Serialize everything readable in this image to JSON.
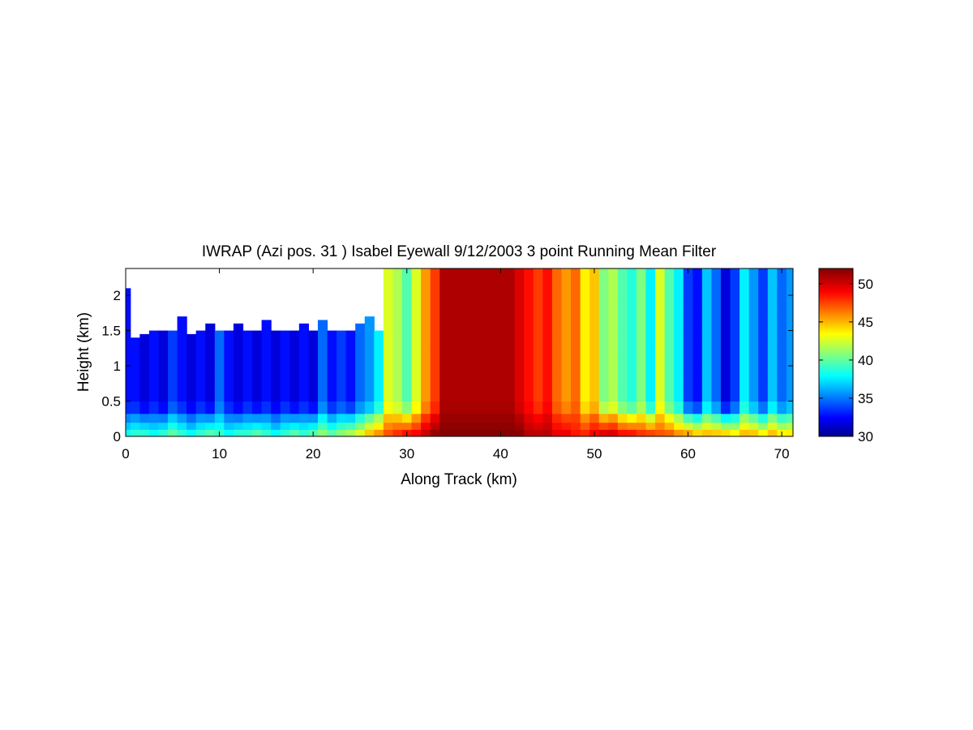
{
  "chart_data": {
    "type": "heatmap",
    "title": "IWRAP (Azi pos. 31 ) Isabel Eyewall 9/12/2003 3 point Running Mean Filter",
    "xlabel": "Along Track (km)",
    "ylabel": "Height (km)",
    "xlim": [
      0,
      71.2
    ],
    "ylim": [
      0,
      2.38
    ],
    "x_ticks": [
      "0",
      "10",
      "20",
      "30",
      "40",
      "50",
      "60",
      "70"
    ],
    "y_ticks": [
      "0",
      "0.5",
      "1",
      "1.5",
      "2"
    ],
    "colorbar": {
      "range": [
        30,
        52
      ],
      "ticks": [
        "30",
        "35",
        "40",
        "45",
        "50"
      ],
      "colormap": "jet"
    },
    "x": [
      0,
      1,
      2,
      3,
      4,
      5,
      6,
      7,
      8,
      9,
      10,
      11,
      12,
      13,
      14,
      15,
      16,
      17,
      18,
      19,
      20,
      21,
      22,
      23,
      24,
      25,
      26,
      27,
      28,
      29,
      30,
      31,
      32,
      33,
      34,
      35,
      36,
      37,
      38,
      39,
      40,
      41,
      42,
      43,
      44,
      45,
      46,
      47,
      48,
      49,
      50,
      51,
      52,
      53,
      54,
      55,
      56,
      57,
      58,
      59,
      60,
      61,
      62,
      63,
      64,
      65,
      66,
      67,
      68,
      69,
      70,
      71
    ],
    "y": [
      0.05,
      0.15,
      0.25,
      0.4,
      0.6,
      0.8,
      1.0,
      1.2,
      1.4,
      1.6,
      1.8,
      2.0,
      2.2,
      2.35
    ],
    "column_top_km": [
      2.1,
      1.4,
      1.45,
      1.5,
      1.55,
      1.5,
      1.7,
      1.45,
      1.55,
      1.6,
      1.55,
      1.5,
      1.6,
      1.5,
      1.55,
      1.65,
      1.5,
      1.55,
      1.5,
      1.6,
      1.55,
      1.65,
      1.5,
      1.55,
      1.5,
      1.6,
      1.7,
      1.55,
      2.38,
      2.38,
      2.38,
      2.38,
      2.38,
      2.38,
      2.38,
      2.38,
      2.38,
      2.38,
      2.38,
      2.38,
      2.38,
      2.38,
      2.38,
      2.38,
      2.38,
      2.38,
      2.38,
      2.38,
      2.38,
      2.38,
      2.38,
      2.38,
      2.38,
      2.38,
      2.38,
      2.38,
      2.38,
      2.38,
      2.38,
      2.38,
      2.38,
      2.38,
      2.38,
      2.38,
      2.38,
      2.38,
      2.38,
      2.38,
      2.38,
      2.38,
      2.38,
      2.38
    ],
    "aloft_dbz": [
      33,
      33,
      32,
      33,
      32,
      34,
      33,
      32,
      33,
      32,
      35,
      33,
      32,
      33,
      32,
      33,
      32,
      33,
      32,
      33,
      32,
      35,
      33,
      34,
      33,
      35,
      36,
      38,
      43,
      42,
      40,
      43,
      46,
      48,
      51,
      51,
      51,
      51,
      51,
      51,
      51,
      51,
      50,
      49,
      48,
      49,
      47,
      46,
      47,
      44,
      45,
      41,
      42,
      40,
      39,
      41,
      38,
      43,
      40,
      38,
      34,
      33,
      37,
      35,
      32,
      34,
      38,
      36,
      34,
      37,
      35,
      36
    ],
    "surface_dbz": [
      39,
      40,
      40,
      39,
      40,
      41,
      40,
      39,
      40,
      41,
      40,
      39,
      40,
      40,
      41,
      40,
      39,
      40,
      41,
      40,
      41,
      42,
      41,
      42,
      43,
      44,
      46,
      47,
      48,
      49,
      50,
      50,
      51,
      52,
      52,
      52,
      52,
      52,
      52,
      52,
      52,
      52,
      52,
      51,
      51,
      51,
      50,
      50,
      49,
      49,
      50,
      51,
      51,
      50,
      50,
      49,
      49,
      48,
      48,
      47,
      47,
      46,
      46,
      46,
      46,
      45,
      46,
      46,
      45,
      46,
      45,
      45
    ]
  }
}
